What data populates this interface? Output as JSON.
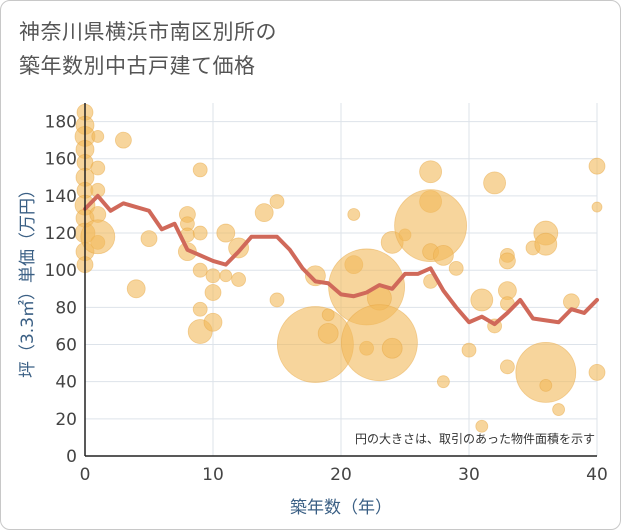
{
  "title_line1": "神奈川県横浜市南区別所の",
  "title_line2": "築年数別中古戸建て価格",
  "chart_data": {
    "type": "scatter",
    "title": "神奈川県横浜市南区別所の築年数別中古戸建て価格",
    "xlabel": "築年数（年）",
    "ylabel": "坪（3.3㎡）単価（万円）",
    "xlim": [
      0,
      40
    ],
    "ylim": [
      0,
      190
    ],
    "xticks": [
      0,
      10,
      20,
      30,
      40
    ],
    "yticks": [
      0,
      20,
      40,
      60,
      80,
      100,
      120,
      140,
      160,
      180
    ],
    "note": "円の大きさは、取引のあった物件面積を示す",
    "colors": {
      "bubble": "#f2b95a",
      "line": "#d0695a",
      "grid": "#dde3ea",
      "axis_title": "#3a5f84"
    },
    "bubbles": [
      {
        "x": 0,
        "y": 185,
        "s": 8
      },
      {
        "x": 0,
        "y": 178,
        "s": 9
      },
      {
        "x": 0,
        "y": 172,
        "s": 10
      },
      {
        "x": 0,
        "y": 165,
        "s": 9
      },
      {
        "x": 0,
        "y": 158,
        "s": 8
      },
      {
        "x": 0,
        "y": 150,
        "s": 9
      },
      {
        "x": 0,
        "y": 143,
        "s": 8
      },
      {
        "x": 0,
        "y": 135,
        "s": 10
      },
      {
        "x": 0,
        "y": 128,
        "s": 9
      },
      {
        "x": 0,
        "y": 120,
        "s": 10
      },
      {
        "x": 0,
        "y": 110,
        "s": 9
      },
      {
        "x": 0,
        "y": 103,
        "s": 8
      },
      {
        "x": 1,
        "y": 172,
        "s": 6
      },
      {
        "x": 1,
        "y": 155,
        "s": 7
      },
      {
        "x": 1,
        "y": 143,
        "s": 7
      },
      {
        "x": 1,
        "y": 130,
        "s": 8
      },
      {
        "x": 1,
        "y": 115,
        "s": 7
      },
      {
        "x": 1,
        "y": 118,
        "s": 17
      },
      {
        "x": 3,
        "y": 170,
        "s": 8
      },
      {
        "x": 4,
        "y": 90,
        "s": 9
      },
      {
        "x": 5,
        "y": 117,
        "s": 8
      },
      {
        "x": 8,
        "y": 130,
        "s": 8
      },
      {
        "x": 8,
        "y": 125,
        "s": 7
      },
      {
        "x": 8,
        "y": 119,
        "s": 7
      },
      {
        "x": 8,
        "y": 110,
        "s": 9
      },
      {
        "x": 9,
        "y": 154,
        "s": 7
      },
      {
        "x": 9,
        "y": 120,
        "s": 7
      },
      {
        "x": 9,
        "y": 100,
        "s": 7
      },
      {
        "x": 9,
        "y": 79,
        "s": 7
      },
      {
        "x": 9,
        "y": 67,
        "s": 12
      },
      {
        "x": 10,
        "y": 97,
        "s": 7
      },
      {
        "x": 10,
        "y": 88,
        "s": 8
      },
      {
        "x": 10,
        "y": 72,
        "s": 9
      },
      {
        "x": 11,
        "y": 120,
        "s": 9
      },
      {
        "x": 11,
        "y": 97,
        "s": 6
      },
      {
        "x": 12,
        "y": 112,
        "s": 10
      },
      {
        "x": 12,
        "y": 95,
        "s": 7
      },
      {
        "x": 14,
        "y": 131,
        "s": 9
      },
      {
        "x": 15,
        "y": 137,
        "s": 7
      },
      {
        "x": 15,
        "y": 84,
        "s": 7
      },
      {
        "x": 18,
        "y": 97,
        "s": 10
      },
      {
        "x": 18,
        "y": 60,
        "s": 38
      },
      {
        "x": 19,
        "y": 76,
        "s": 6
      },
      {
        "x": 19,
        "y": 66,
        "s": 10
      },
      {
        "x": 21,
        "y": 130,
        "s": 6
      },
      {
        "x": 21,
        "y": 103,
        "s": 9
      },
      {
        "x": 22,
        "y": 91,
        "s": 38
      },
      {
        "x": 22,
        "y": 58,
        "s": 7
      },
      {
        "x": 23,
        "y": 85,
        "s": 12
      },
      {
        "x": 23,
        "y": 61,
        "s": 38
      },
      {
        "x": 24,
        "y": 115,
        "s": 11
      },
      {
        "x": 24,
        "y": 58,
        "s": 10
      },
      {
        "x": 25,
        "y": 119,
        "s": 6
      },
      {
        "x": 27,
        "y": 153,
        "s": 11
      },
      {
        "x": 27,
        "y": 137,
        "s": 11
      },
      {
        "x": 27,
        "y": 124,
        "s": 36
      },
      {
        "x": 27,
        "y": 110,
        "s": 8
      },
      {
        "x": 27,
        "y": 94,
        "s": 7
      },
      {
        "x": 28,
        "y": 108,
        "s": 10
      },
      {
        "x": 28,
        "y": 40,
        "s": 6
      },
      {
        "x": 29,
        "y": 101,
        "s": 7
      },
      {
        "x": 30,
        "y": 57,
        "s": 7
      },
      {
        "x": 31,
        "y": 84,
        "s": 11
      },
      {
        "x": 31,
        "y": 16,
        "s": 6
      },
      {
        "x": 32,
        "y": 147,
        "s": 11
      },
      {
        "x": 32,
        "y": 70,
        "s": 7
      },
      {
        "x": 33,
        "y": 108,
        "s": 7
      },
      {
        "x": 33,
        "y": 105,
        "s": 8
      },
      {
        "x": 33,
        "y": 89,
        "s": 9
      },
      {
        "x": 33,
        "y": 82,
        "s": 7
      },
      {
        "x": 33,
        "y": 48,
        "s": 7
      },
      {
        "x": 35,
        "y": 112,
        "s": 7
      },
      {
        "x": 36,
        "y": 120,
        "s": 12
      },
      {
        "x": 36,
        "y": 114,
        "s": 11
      },
      {
        "x": 36,
        "y": 45,
        "s": 30
      },
      {
        "x": 36,
        "y": 38,
        "s": 6
      },
      {
        "x": 37,
        "y": 25,
        "s": 6
      },
      {
        "x": 38,
        "y": 83,
        "s": 8
      },
      {
        "x": 40,
        "y": 156,
        "s": 8
      },
      {
        "x": 40,
        "y": 134,
        "s": 5
      },
      {
        "x": 40,
        "y": 45,
        "s": 8
      }
    ],
    "avg_line": {
      "x": [
        0,
        1,
        2,
        3,
        4,
        5,
        6,
        7,
        8,
        9,
        10,
        11,
        12,
        13,
        14,
        15,
        16,
        17,
        18,
        19,
        20,
        21,
        22,
        23,
        24,
        25,
        26,
        27,
        28,
        29,
        30,
        31,
        32,
        33,
        34,
        35,
        36,
        37,
        38,
        39,
        40
      ],
      "y": [
        133,
        140,
        132,
        136,
        134,
        132,
        122,
        125,
        111,
        108,
        105,
        103,
        110,
        118,
        118,
        118,
        111,
        101,
        94,
        93,
        87,
        86,
        88,
        92,
        90,
        98,
        98,
        101,
        89,
        80,
        72,
        75,
        71,
        77,
        84,
        74,
        73,
        72,
        79,
        77,
        84
      ]
    }
  }
}
